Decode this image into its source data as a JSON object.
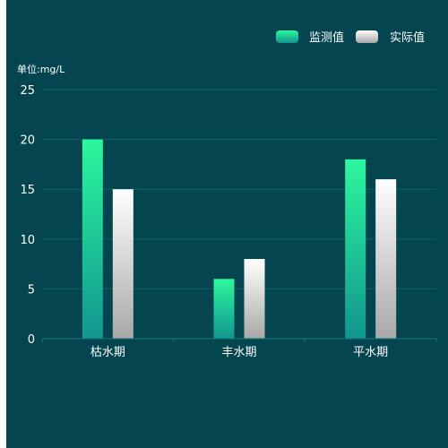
{
  "chart_data": {
    "type": "bar",
    "unit_label": "单位:mg/L",
    "categories": [
      "枯水期",
      "丰水期",
      "平水期"
    ],
    "series": [
      {
        "name": "监测值",
        "values": [
          20,
          6,
          18
        ],
        "color_top": "#2cf79e",
        "color_bottom": "#11968e"
      },
      {
        "name": "实际值",
        "values": [
          15,
          8,
          16
        ],
        "color_top": "#ffffff",
        "color_bottom": "#a8a8a8"
      }
    ],
    "ylim": [
      0,
      25
    ],
    "yticks": [
      0,
      5,
      10,
      15,
      20,
      25
    ],
    "grid": true,
    "legend_position": "top-right"
  },
  "colors": {
    "background": "#04454f",
    "gridline": "#0e6464",
    "axis": "#0e7a7a",
    "text": "#ffffff"
  }
}
